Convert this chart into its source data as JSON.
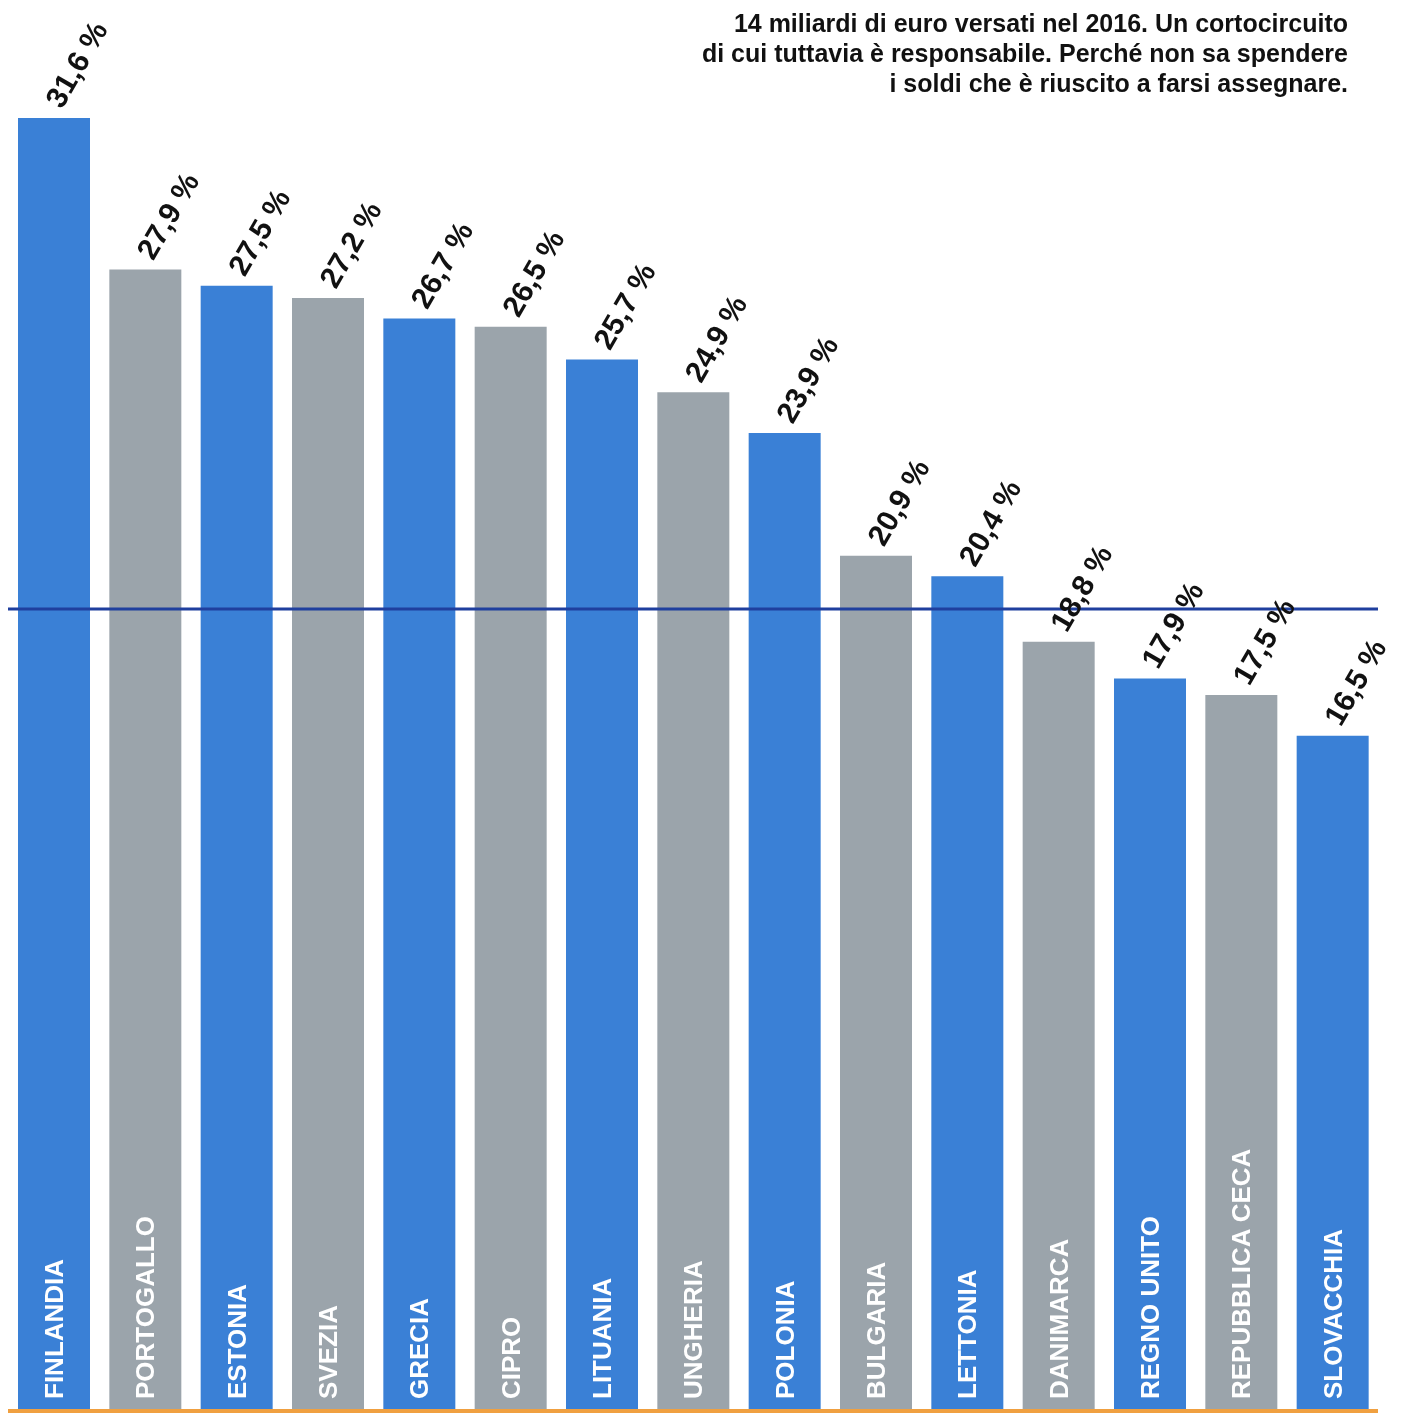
{
  "chart_data": {
    "type": "bar",
    "subtitle": "14 miliardi di euro versati nel 2016. Un cortocircuito\ndi cui tuttavia è responsabile. Perché non sa spendere\ni soldi che è riuscito a farsi assegnare.",
    "categories": [
      "FINLANDIA",
      "PORTOGALLO",
      "ESTONIA",
      "SVEZIA",
      "GRECIA",
      "CIPRO",
      "LITUANIA",
      "UNGHERIA",
      "POLONIA",
      "BULGARIA",
      "LETTONIA",
      "DANIMARCA",
      "REGNO UNITO",
      "REPUBBLICA CECA",
      "SLOVACCHIA"
    ],
    "values": [
      31.6,
      27.9,
      27.5,
      27.2,
      26.7,
      26.5,
      25.7,
      24.9,
      23.9,
      20.9,
      20.4,
      18.8,
      17.9,
      17.5,
      16.5
    ],
    "value_labels": [
      "31,6 %",
      "27,9 %",
      "27,5 %",
      "27,2 %",
      "26,7 %",
      "26,5 %",
      "25,7 %",
      "24,9 %",
      "23,9 %",
      "20,9 %",
      "20,4 %",
      "18,8 %",
      "17,9 %",
      "17,5 %",
      "16,5 %"
    ],
    "colors": [
      "#3a80d6",
      "#9ba4ab",
      "#3a80d6",
      "#9ba4ab",
      "#3a80d6",
      "#9ba4ab",
      "#3a80d6",
      "#9ba4ab",
      "#3a80d6",
      "#9ba4ab",
      "#3a80d6",
      "#9ba4ab",
      "#3a80d6",
      "#9ba4ab",
      "#3a80d6"
    ],
    "ref_lines": [
      {
        "axis": "y",
        "value": 19.6,
        "color": "#1f3f9e"
      }
    ],
    "grid": false,
    "legend": false
  }
}
